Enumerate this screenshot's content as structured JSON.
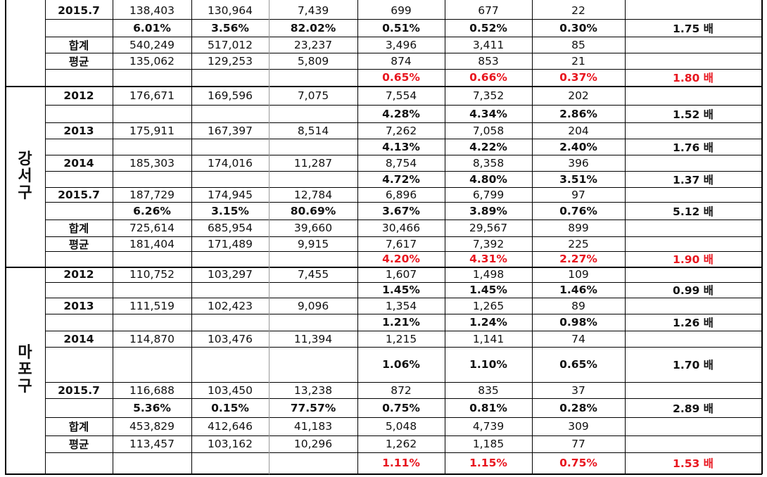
{
  "groups": [
    {
      "district": "",
      "district_chars": [],
      "rows": [
        {
          "label": "2015.7",
          "kind": "year",
          "vals": [
            "138,403",
            "130,964",
            "7,439",
            "699",
            "677",
            "22",
            ""
          ]
        },
        {
          "label": "",
          "kind": "pct",
          "vals": [
            "6.01%",
            "3.56%",
            "82.02%",
            "0.51%",
            "0.52%",
            "0.30%",
            "1.75 배"
          ]
        },
        {
          "label": "합계",
          "kind": "lab",
          "vals": [
            "540,249",
            "517,012",
            "23,237",
            "3,496",
            "3,411",
            "85",
            ""
          ]
        },
        {
          "label": "평균",
          "kind": "lab",
          "vals": [
            "135,062",
            "129,253",
            "5,809",
            "874",
            "853",
            "21",
            ""
          ]
        },
        {
          "label": "",
          "kind": "red",
          "vals": [
            "",
            "",
            "",
            "0.65%",
            "0.66%",
            "0.37%",
            "1.80 배"
          ]
        }
      ]
    },
    {
      "district": "강서구",
      "district_chars": [
        "강",
        "서",
        "구"
      ],
      "rows": [
        {
          "label": "2012",
          "kind": "year",
          "vals": [
            "176,671",
            "169,596",
            "7,075",
            "7,554",
            "7,352",
            "202",
            ""
          ]
        },
        {
          "label": "",
          "kind": "pct",
          "vals": [
            "",
            "",
            "",
            "4.28%",
            "4.34%",
            "2.86%",
            "1.52 배"
          ]
        },
        {
          "label": "2013",
          "kind": "year",
          "vals": [
            "175,911",
            "167,397",
            "8,514",
            "7,262",
            "7,058",
            "204",
            ""
          ]
        },
        {
          "label": "",
          "kind": "pct",
          "vals": [
            "",
            "",
            "",
            "4.13%",
            "4.22%",
            "2.40%",
            "1.76 배"
          ]
        },
        {
          "label": "2014",
          "kind": "year",
          "vals": [
            "185,303",
            "174,016",
            "11,287",
            "8,754",
            "8,358",
            "396",
            ""
          ]
        },
        {
          "label": "",
          "kind": "pct",
          "vals": [
            "",
            "",
            "",
            "4.72%",
            "4.80%",
            "3.51%",
            "1.37 배"
          ]
        },
        {
          "label": "2015.7",
          "kind": "year",
          "vals": [
            "187,729",
            "174,945",
            "12,784",
            "6,896",
            "6,799",
            "97",
            ""
          ]
        },
        {
          "label": "",
          "kind": "pct",
          "vals": [
            "6.26%",
            "3.15%",
            "80.69%",
            "3.67%",
            "3.89%",
            "0.76%",
            "5.12 배"
          ]
        },
        {
          "label": "합계",
          "kind": "lab",
          "vals": [
            "725,614",
            "685,954",
            "39,660",
            "30,466",
            "29,567",
            "899",
            ""
          ]
        },
        {
          "label": "평균",
          "kind": "lab",
          "vals": [
            "181,404",
            "171,489",
            "9,915",
            "7,617",
            "7,392",
            "225",
            ""
          ]
        },
        {
          "label": "",
          "kind": "red",
          "vals": [
            "",
            "",
            "",
            "4.20%",
            "4.31%",
            "2.27%",
            "1.90 배"
          ]
        }
      ]
    },
    {
      "district": "마포구",
      "district_chars": [
        "마",
        "포",
        "구"
      ],
      "rows": [
        {
          "label": "2012",
          "kind": "year",
          "vals": [
            "110,752",
            "103,297",
            "7,455",
            "1,607",
            "1,498",
            "109",
            ""
          ]
        },
        {
          "label": "",
          "kind": "pct",
          "vals": [
            "",
            "",
            "",
            "1.45%",
            "1.45%",
            "1.46%",
            "0.99 배"
          ]
        },
        {
          "label": "2013",
          "kind": "year",
          "vals": [
            "111,519",
            "102,423",
            "9,096",
            "1,354",
            "1,265",
            "89",
            ""
          ]
        },
        {
          "label": "",
          "kind": "pct",
          "vals": [
            "",
            "",
            "",
            "1.21%",
            "1.24%",
            "0.98%",
            "1.26 배"
          ]
        },
        {
          "label": "2014",
          "kind": "year",
          "vals": [
            "114,870",
            "103,476",
            "11,394",
            "1,215",
            "1,141",
            "74",
            ""
          ]
        },
        {
          "label": "",
          "kind": "pct",
          "vals": [
            "",
            "",
            "",
            "1.06%",
            "1.10%",
            "0.65%",
            "1.70 배"
          ]
        },
        {
          "label": "2015.7",
          "kind": "year",
          "vals": [
            "116,688",
            "103,450",
            "13,238",
            "872",
            "835",
            "37",
            ""
          ]
        },
        {
          "label": "",
          "kind": "pct",
          "vals": [
            "5.36%",
            "0.15%",
            "77.57%",
            "0.75%",
            "0.81%",
            "0.28%",
            "2.89 배"
          ]
        },
        {
          "label": "합계",
          "kind": "lab",
          "vals": [
            "453,829",
            "412,646",
            "41,183",
            "5,048",
            "4,739",
            "309",
            ""
          ]
        },
        {
          "label": "평균",
          "kind": "lab",
          "vals": [
            "113,457",
            "103,162",
            "10,296",
            "1,262",
            "1,185",
            "77",
            ""
          ]
        },
        {
          "label": "",
          "kind": "red",
          "vals": [
            "",
            "",
            "",
            "1.11%",
            "1.15%",
            "0.75%",
            "1.53 배"
          ]
        }
      ]
    }
  ]
}
